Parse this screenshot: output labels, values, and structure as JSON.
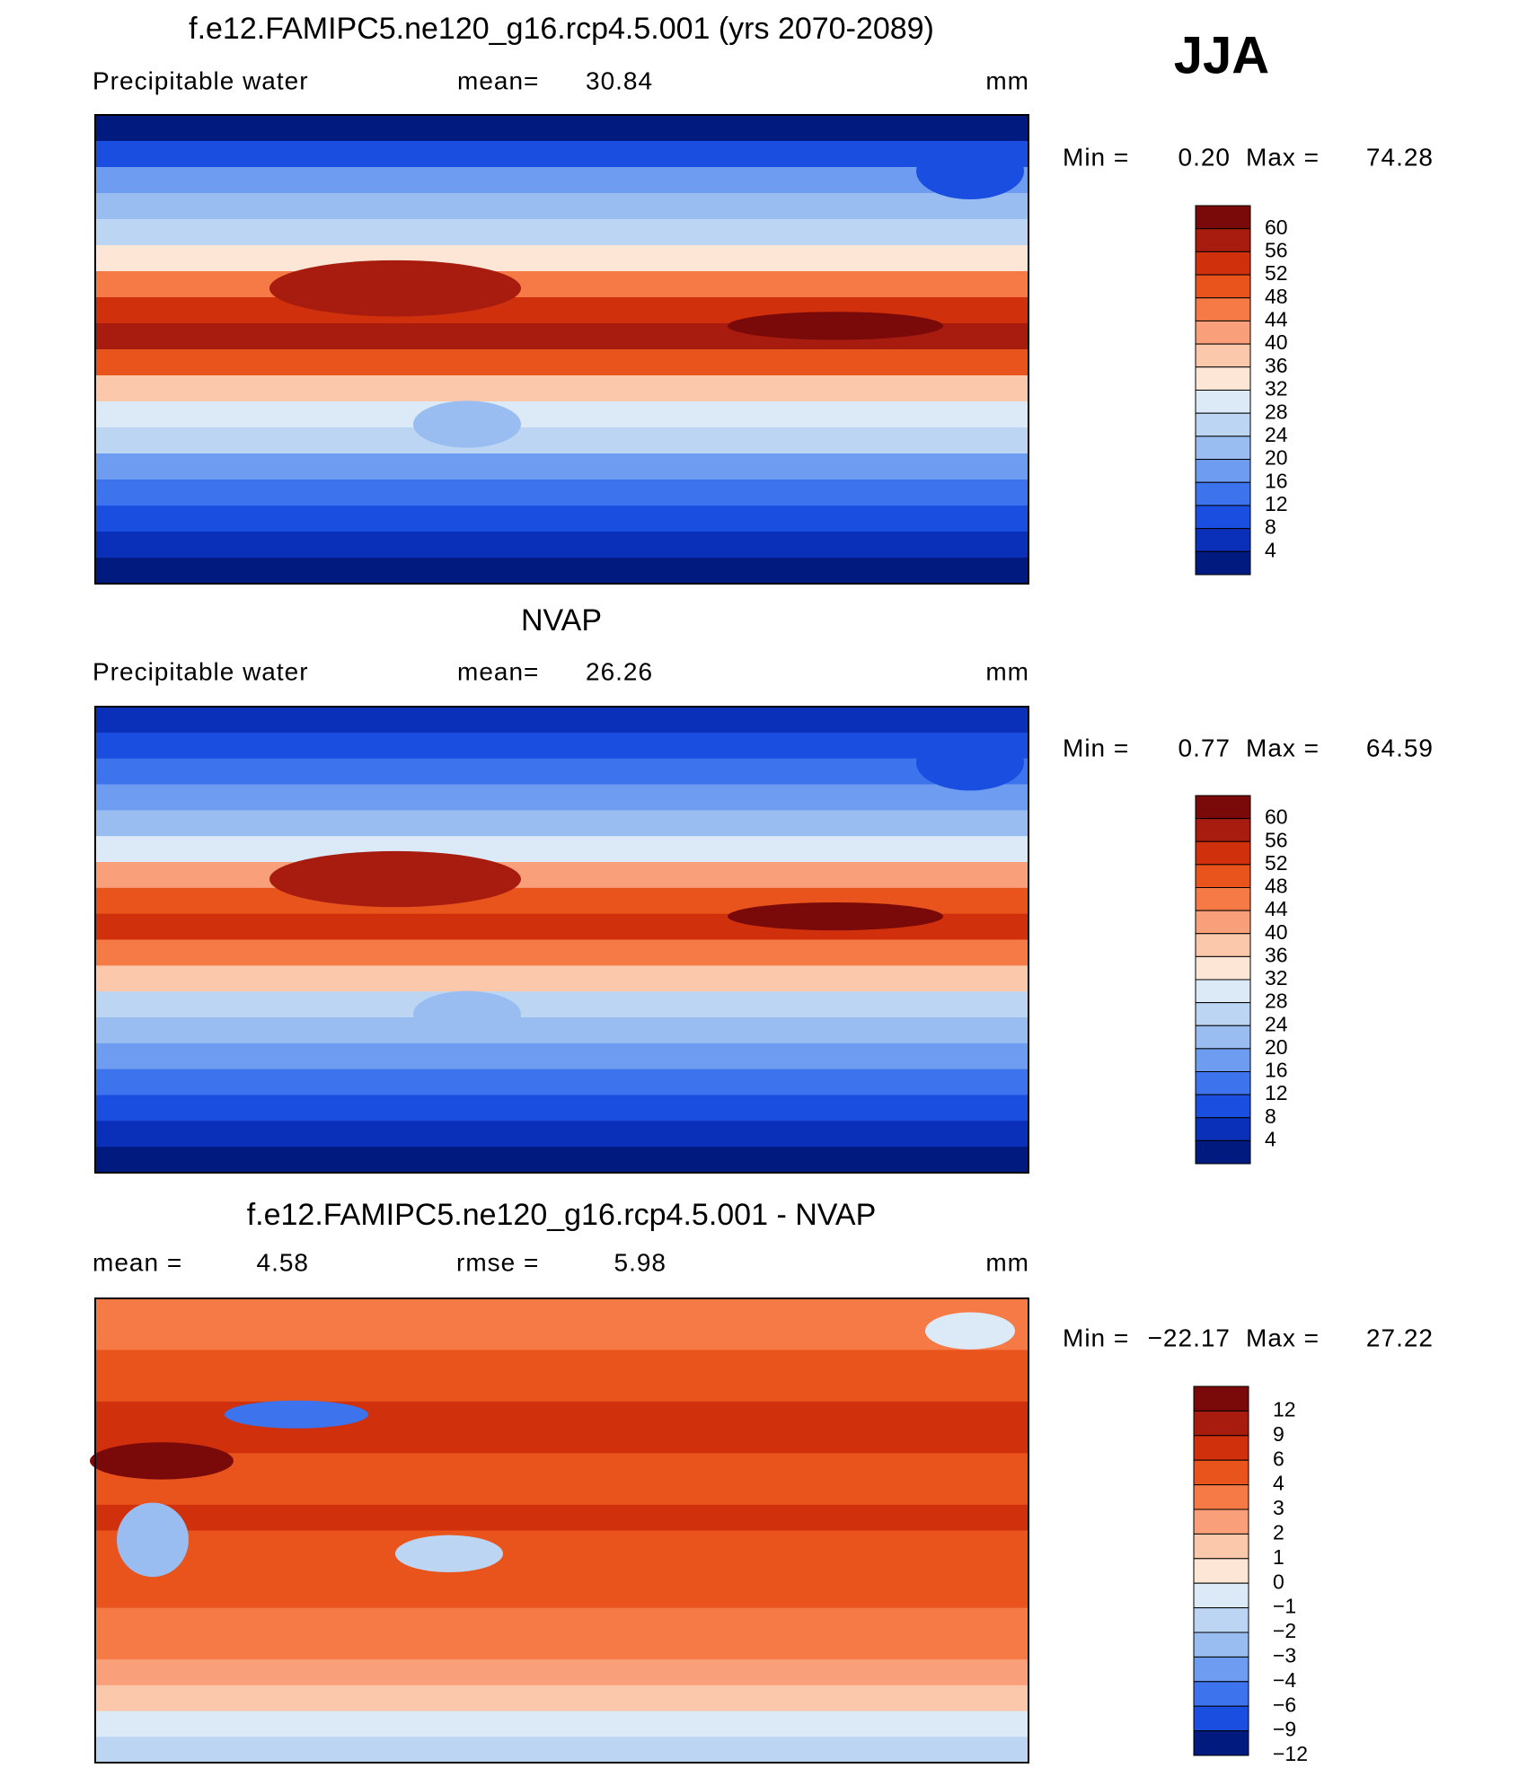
{
  "header": {
    "season": "JJA"
  },
  "panels": [
    {
      "title": "f.e12.FAMIPC5.ne120_g16.rcp4.5.001 (yrs 2070-2089)",
      "variable": "Precipitable water",
      "mean_label": "mean=",
      "mean": "30.84",
      "units": "mm",
      "min_label": "Min =",
      "min": "0.20",
      "max_label": "Max =",
      "max": "74.28",
      "levels": [
        "60",
        "56",
        "52",
        "48",
        "44",
        "40",
        "36",
        "32",
        "28",
        "24",
        "20",
        "16",
        "12",
        "8",
        "4"
      ]
    },
    {
      "title": "NVAP",
      "variable": "Precipitable water",
      "mean_label": "mean=",
      "mean": "26.26",
      "units": "mm",
      "min_label": "Min =",
      "min": "0.77",
      "max_label": "Max =",
      "max": "64.59",
      "levels": [
        "60",
        "56",
        "52",
        "48",
        "44",
        "40",
        "36",
        "32",
        "28",
        "24",
        "20",
        "16",
        "12",
        "8",
        "4"
      ]
    },
    {
      "title": "f.e12.FAMIPC5.ne120_g16.rcp4.5.001 - NVAP",
      "mean_label": "mean =",
      "mean": "4.58",
      "rmse_label": "rmse =",
      "rmse": "5.98",
      "units": "mm",
      "min_label": "Min =",
      "min": "−22.17",
      "max_label": "Max =",
      "max": "27.22",
      "levels": [
        "12",
        "9",
        "6",
        "4",
        "3",
        "2",
        "1",
        "0",
        "−1",
        "−2",
        "−3",
        "−4",
        "−6",
        "−9",
        "−12"
      ]
    }
  ]
}
